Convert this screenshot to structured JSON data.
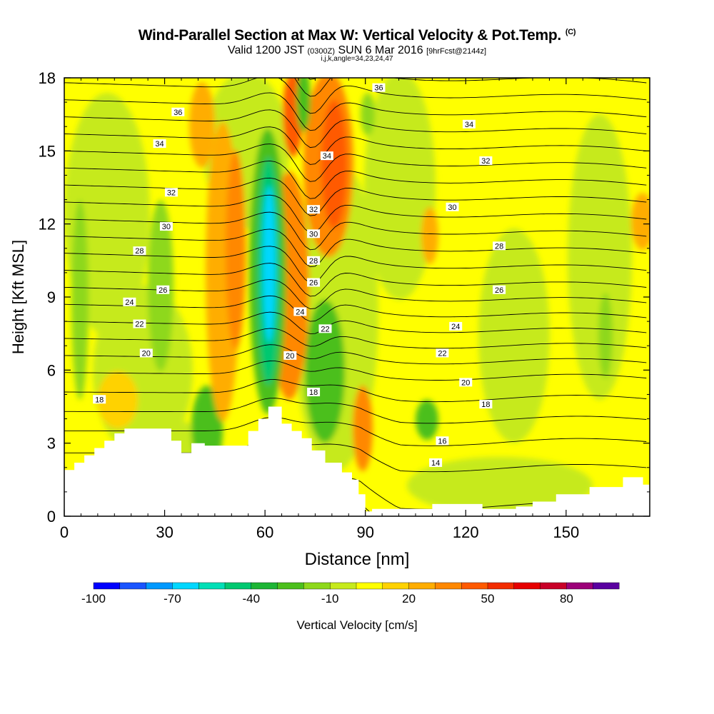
{
  "header": {
    "title": "Wind-Parallel Section at Max W: Vertical Velocity & Pot.Temp.",
    "copyright_mark": "(C)",
    "valid_prefix": "Valid 1200 JST",
    "valid_utc": "(0300Z)",
    "valid_date": "SUN 6 Mar 2016",
    "forecast": "[9hrFcst@2144z]",
    "indices": "i,j,k,angle=34,23,24,47"
  },
  "colors": {
    "background": "#ffffff",
    "terrain": "#ffffff",
    "contour": "#000000"
  },
  "chart_data": {
    "type": "heatmap",
    "xlabel": "Distance [nm]",
    "ylabel": "Height [Kft MSL]",
    "xlim": [
      0,
      175
    ],
    "ylim": [
      0,
      18
    ],
    "x_ticks": [
      0,
      30,
      60,
      90,
      120,
      150
    ],
    "y_ticks": [
      0,
      3,
      6,
      9,
      12,
      15,
      18
    ],
    "colorbar": {
      "label": "Vertical Velocity [cm/s]",
      "range": [
        -100,
        100
      ],
      "tick_labels": [
        "-100",
        "-70",
        "-40",
        "-10",
        "20",
        "50",
        "80"
      ],
      "tick_values": [
        -100,
        -70,
        -40,
        -10,
        20,
        50,
        80
      ],
      "colors": [
        "#0000ff",
        "#1a55ff",
        "#0099ff",
        "#00d7ff",
        "#00dfb6",
        "#00c870",
        "#1db535",
        "#4cbf1c",
        "#8ed81a",
        "#c6ea1c",
        "#ffff00",
        "#ffd200",
        "#ffad00",
        "#ff8800",
        "#ff5a00",
        "#f22d00",
        "#e60000",
        "#c80028",
        "#9c0078",
        "#5a00a0"
      ]
    },
    "contour_variable": "potential temperature",
    "contour_levels": [
      14,
      16,
      18,
      20,
      22,
      24,
      26,
      28,
      30,
      32,
      34,
      36
    ],
    "contour_labels": [
      {
        "x": 10.5,
        "y": 4.8,
        "text": "18"
      },
      {
        "x": 24.5,
        "y": 6.7,
        "text": "20"
      },
      {
        "x": 22.5,
        "y": 7.9,
        "text": "22"
      },
      {
        "x": 19.5,
        "y": 8.8,
        "text": "24"
      },
      {
        "x": 29.5,
        "y": 9.3,
        "text": "26"
      },
      {
        "x": 22.5,
        "y": 10.9,
        "text": "28"
      },
      {
        "x": 30.5,
        "y": 11.9,
        "text": "30"
      },
      {
        "x": 32,
        "y": 13.3,
        "text": "32"
      },
      {
        "x": 28.5,
        "y": 15.3,
        "text": "34"
      },
      {
        "x": 34,
        "y": 16.6,
        "text": "36"
      },
      {
        "x": 67.5,
        "y": 6.6,
        "text": "20"
      },
      {
        "x": 74.5,
        "y": 5.1,
        "text": "18"
      },
      {
        "x": 70.5,
        "y": 8.4,
        "text": "24"
      },
      {
        "x": 78,
        "y": 7.7,
        "text": "22"
      },
      {
        "x": 74.5,
        "y": 9.6,
        "text": "26"
      },
      {
        "x": 74.5,
        "y": 10.5,
        "text": "28"
      },
      {
        "x": 74.5,
        "y": 11.6,
        "text": "30"
      },
      {
        "x": 74.5,
        "y": 12.6,
        "text": "32"
      },
      {
        "x": 78.5,
        "y": 14.8,
        "text": "34"
      },
      {
        "x": 94,
        "y": 17.6,
        "text": "36"
      },
      {
        "x": 121,
        "y": 16.1,
        "text": "34"
      },
      {
        "x": 126,
        "y": 14.6,
        "text": "32"
      },
      {
        "x": 116,
        "y": 12.7,
        "text": "30"
      },
      {
        "x": 130,
        "y": 11.1,
        "text": "28"
      },
      {
        "x": 130,
        "y": 9.3,
        "text": "26"
      },
      {
        "x": 117,
        "y": 7.8,
        "text": "24"
      },
      {
        "x": 113,
        "y": 6.7,
        "text": "22"
      },
      {
        "x": 120,
        "y": 5.5,
        "text": "20"
      },
      {
        "x": 126,
        "y": 4.6,
        "text": "18"
      },
      {
        "x": 113,
        "y": 3.1,
        "text": "16"
      },
      {
        "x": 111,
        "y": 2.2,
        "text": "14"
      }
    ],
    "terrain_profile_kft": [
      [
        0,
        1.9
      ],
      [
        3,
        1.9
      ],
      [
        3,
        2.2
      ],
      [
        6,
        2.2
      ],
      [
        6,
        2.5
      ],
      [
        9,
        2.5
      ],
      [
        9,
        2.8
      ],
      [
        12,
        2.8
      ],
      [
        12,
        3.1
      ],
      [
        15,
        3.1
      ],
      [
        15,
        3.4
      ],
      [
        18,
        3.4
      ],
      [
        18,
        3.6
      ],
      [
        32,
        3.6
      ],
      [
        32,
        3.1
      ],
      [
        35,
        3.1
      ],
      [
        35,
        2.6
      ],
      [
        38,
        2.6
      ],
      [
        38,
        3.0
      ],
      [
        42,
        3.0
      ],
      [
        42,
        2.9
      ],
      [
        55,
        2.9
      ],
      [
        55,
        3.5
      ],
      [
        58,
        3.5
      ],
      [
        58,
        4.0
      ],
      [
        61,
        4.0
      ],
      [
        61,
        4.5
      ],
      [
        65,
        4.5
      ],
      [
        65,
        3.8
      ],
      [
        68,
        3.8
      ],
      [
        68,
        3.5
      ],
      [
        71,
        3.5
      ],
      [
        71,
        3.2
      ],
      [
        74,
        3.2
      ],
      [
        74,
        2.7
      ],
      [
        78,
        2.7
      ],
      [
        78,
        2.2
      ],
      [
        83,
        2.2
      ],
      [
        83,
        1.8
      ],
      [
        86,
        1.8
      ],
      [
        86,
        1.5
      ],
      [
        88,
        1.5
      ],
      [
        88,
        0.9
      ],
      [
        90,
        0.9
      ],
      [
        90,
        0.2
      ],
      [
        92,
        0.2
      ],
      [
        92,
        0.3
      ],
      [
        110,
        0.3
      ],
      [
        110,
        0.5
      ],
      [
        125,
        0.5
      ],
      [
        125,
        0.3
      ],
      [
        135,
        0.3
      ],
      [
        135,
        0.4
      ],
      [
        140,
        0.4
      ],
      [
        140,
        0.6
      ],
      [
        147,
        0.6
      ],
      [
        147,
        0.9
      ],
      [
        157,
        0.9
      ],
      [
        157,
        1.2
      ],
      [
        167,
        1.2
      ],
      [
        167,
        1.6
      ],
      [
        173,
        1.6
      ],
      [
        173,
        1.3
      ],
      [
        175,
        1.3
      ]
    ]
  }
}
